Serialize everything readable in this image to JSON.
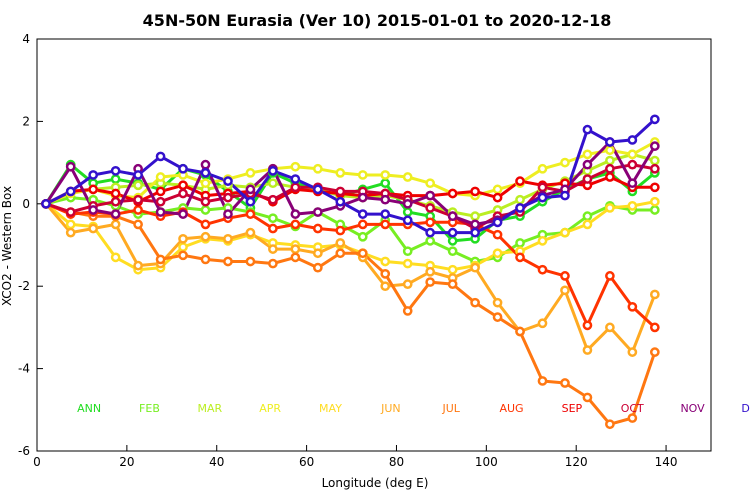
{
  "chart_data": {
    "type": "line",
    "title": "45N-50N Eurasia (Ver 10)   2015-01-01 to 2020-12-18",
    "xlabel": "Longitude (deg E)",
    "ylabel": "XCO2 - Western Box",
    "xlim": [
      0,
      150
    ],
    "ylim": [
      -6,
      4
    ],
    "xticks": [
      0,
      20,
      40,
      60,
      80,
      100,
      120,
      140
    ],
    "yticks": [
      4,
      2,
      0,
      -2,
      -4,
      -6
    ],
    "grid": false,
    "x": [
      2,
      7.5,
      12.5,
      17.5,
      22.5,
      27.5,
      32.5,
      37.5,
      42.5,
      47.5,
      52.5,
      57.5,
      62.5,
      67.5,
      72.5,
      77.5,
      82.5,
      87.5,
      92.5,
      97.5,
      102.5,
      107.5,
      112.5,
      117.5,
      122.5,
      127.5,
      132.5,
      137.5
    ],
    "series": [
      {
        "name": "ANN",
        "color": "#22dd22",
        "values": [
          0.0,
          0.95,
          0.5,
          0.6,
          0.5,
          0.35,
          0.85,
          0.7,
          0.3,
          -0.1,
          0.75,
          0.5,
          0.35,
          0.2,
          0.35,
          0.5,
          -0.2,
          -0.3,
          -0.9,
          -0.85,
          -0.4,
          -0.3,
          0.05,
          0.35,
          0.6,
          0.75,
          0.3,
          0.75
        ]
      },
      {
        "name": "FEB",
        "color": "#77ee22",
        "values": [
          0.0,
          0.15,
          0.1,
          -0.05,
          -0.25,
          -0.2,
          -0.1,
          -0.15,
          -0.1,
          -0.2,
          -0.35,
          -0.55,
          -0.2,
          -0.5,
          -0.8,
          -0.4,
          -1.15,
          -0.9,
          -1.15,
          -1.4,
          -1.3,
          -0.95,
          -0.75,
          -0.7,
          -0.3,
          -0.05,
          -0.15,
          -0.15
        ]
      },
      {
        "name": "MAR",
        "color": "#bbee22",
        "values": [
          0.0,
          0.3,
          0.35,
          0.4,
          0.45,
          0.5,
          0.45,
          0.35,
          0.45,
          0.4,
          0.5,
          0.4,
          0.35,
          0.2,
          0.15,
          0.2,
          0.1,
          -0.05,
          -0.2,
          -0.3,
          -0.15,
          0.1,
          0.35,
          0.55,
          0.8,
          1.05,
          1.2,
          1.05
        ]
      },
      {
        "name": "APR",
        "color": "#eeee22",
        "values": [
          0.0,
          0.25,
          0.35,
          0.2,
          0.15,
          0.65,
          0.7,
          0.5,
          0.6,
          0.75,
          0.85,
          0.9,
          0.85,
          0.75,
          0.7,
          0.7,
          0.65,
          0.5,
          0.25,
          0.2,
          0.35,
          0.5,
          0.85,
          1.0,
          1.2,
          1.3,
          1.2,
          1.5
        ]
      },
      {
        "name": "MAY",
        "color": "#ffdd22",
        "values": [
          0.0,
          -0.5,
          -0.55,
          -1.3,
          -1.6,
          -1.55,
          -1.05,
          -0.85,
          -0.9,
          -0.75,
          -0.95,
          -1.0,
          -1.05,
          -1.0,
          -1.2,
          -1.4,
          -1.45,
          -1.5,
          -1.6,
          -1.5,
          -1.2,
          -1.15,
          -0.9,
          -0.7,
          -0.5,
          -0.1,
          -0.05,
          0.05
        ]
      },
      {
        "name": "JUN",
        "color": "#ffaa22",
        "values": [
          0.0,
          -0.7,
          -0.6,
          -0.5,
          -1.5,
          -1.45,
          -0.85,
          -0.8,
          -0.85,
          -0.7,
          -1.1,
          -1.1,
          -1.2,
          -0.95,
          -1.3,
          -2.0,
          -1.95,
          -1.65,
          -1.8,
          -1.55,
          -2.4,
          -3.1,
          -2.9,
          -2.1,
          -3.55,
          -3.0,
          -3.6,
          -2.2
        ]
      },
      {
        "name": "JUL",
        "color": "#ff7711",
        "values": [
          0.0,
          -0.2,
          -0.3,
          -0.3,
          -0.5,
          -1.35,
          -1.25,
          -1.35,
          -1.4,
          -1.4,
          -1.45,
          -1.3,
          -1.55,
          -1.2,
          -1.2,
          -1.7,
          -2.6,
          -1.9,
          -1.95,
          -2.4,
          -2.75,
          -3.1,
          -4.3,
          -4.35,
          -4.7,
          -5.35,
          -5.2,
          -3.6
        ]
      },
      {
        "name": "AUG",
        "color": "#ff3300",
        "values": [
          0.0,
          -0.25,
          -0.2,
          -0.25,
          -0.15,
          -0.3,
          -0.2,
          -0.5,
          -0.35,
          -0.25,
          -0.6,
          -0.5,
          -0.6,
          -0.65,
          -0.5,
          -0.5,
          -0.5,
          -0.45,
          -0.45,
          -0.5,
          -0.75,
          -1.3,
          -1.6,
          -1.75,
          -2.95,
          -1.75,
          -2.5,
          -3.0
        ]
      },
      {
        "name": "SEP",
        "color": "#ee0000",
        "values": [
          0.0,
          0.3,
          0.35,
          0.25,
          0.05,
          0.3,
          0.45,
          0.2,
          0.25,
          0.3,
          0.05,
          0.35,
          0.3,
          0.25,
          0.2,
          0.25,
          0.2,
          0.2,
          0.25,
          0.3,
          0.15,
          0.55,
          0.45,
          0.5,
          0.45,
          0.65,
          0.4,
          0.4
        ]
      },
      {
        "name": "OCT",
        "color": "#cc0033",
        "values": [
          0.0,
          -0.2,
          -0.05,
          0.05,
          0.1,
          0.05,
          0.25,
          0.05,
          0.15,
          0.25,
          0.1,
          0.4,
          0.4,
          0.3,
          0.3,
          0.25,
          0.1,
          -0.1,
          -0.3,
          -0.6,
          -0.3,
          -0.2,
          0.4,
          0.3,
          0.6,
          0.85,
          0.95,
          0.85
        ]
      },
      {
        "name": "NOV",
        "color": "#880077",
        "values": [
          0.0,
          0.9,
          -0.15,
          -0.25,
          0.85,
          -0.2,
          -0.25,
          0.95,
          -0.25,
          0.35,
          0.85,
          -0.25,
          -0.2,
          -0.05,
          0.15,
          0.1,
          0.0,
          0.2,
          -0.3,
          -0.5,
          -0.4,
          -0.1,
          0.2,
          0.35,
          0.95,
          1.5,
          0.5,
          1.4
        ]
      },
      {
        "name": "DEC",
        "color": "#3311cc",
        "values": [
          0.0,
          0.3,
          0.7,
          0.8,
          0.7,
          1.15,
          0.85,
          0.75,
          0.55,
          0.05,
          0.8,
          0.6,
          0.35,
          0.05,
          -0.25,
          -0.25,
          -0.4,
          -0.7,
          -0.7,
          -0.7,
          -0.45,
          -0.1,
          0.15,
          0.2,
          1.8,
          1.5,
          1.55,
          2.05
        ]
      }
    ]
  }
}
